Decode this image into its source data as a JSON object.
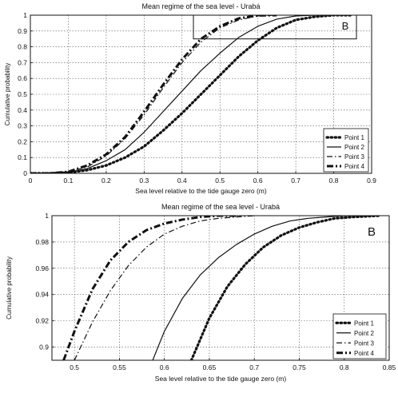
{
  "chart_data": [
    {
      "type": "line",
      "title": "Mean regime of the sea level - Urabá",
      "xlabel": "Sea level relative to the tide gauge zero (m)",
      "ylabel": "Cumulative probability",
      "xlim": [
        0,
        0.9
      ],
      "ylim": [
        0,
        1
      ],
      "xticks": [
        "0",
        "0.1",
        "0.2",
        "0.3",
        "0.4",
        "0.5",
        "0.6",
        "0.7",
        "0.8",
        "0.9"
      ],
      "yticks": [
        "0",
        "0.1",
        "0.2",
        "0.3",
        "0.4",
        "0.5",
        "0.6",
        "0.7",
        "0.8",
        "0.9",
        "1"
      ],
      "grid": true,
      "legend_position": "bottom-right",
      "annotation_box": {
        "label": "B",
        "x_range": [
          0.43,
          0.86
        ],
        "y_range": [
          0.85,
          1.0
        ]
      },
      "series": [
        {
          "name": "Point 1",
          "style": "dotted-thick",
          "x": [
            0,
            0.05,
            0.1,
            0.15,
            0.2,
            0.25,
            0.3,
            0.35,
            0.4,
            0.45,
            0.5,
            0.55,
            0.6,
            0.65,
            0.7,
            0.75,
            0.8,
            0.85
          ],
          "y": [
            0,
            0,
            0.005,
            0.02,
            0.05,
            0.1,
            0.17,
            0.27,
            0.38,
            0.5,
            0.62,
            0.74,
            0.84,
            0.92,
            0.97,
            0.99,
            1.0,
            1.0
          ]
        },
        {
          "name": "Point 2",
          "style": "solid",
          "x": [
            0,
            0.05,
            0.1,
            0.15,
            0.2,
            0.25,
            0.3,
            0.35,
            0.4,
            0.45,
            0.5,
            0.55,
            0.6,
            0.65,
            0.7,
            0.75,
            0.8
          ],
          "y": [
            0,
            0,
            0.005,
            0.03,
            0.08,
            0.15,
            0.26,
            0.39,
            0.52,
            0.65,
            0.76,
            0.86,
            0.93,
            0.975,
            0.995,
            1.0,
            1.0
          ]
        },
        {
          "name": "Point 3",
          "style": "dashdot-thin",
          "x": [
            0,
            0.05,
            0.1,
            0.15,
            0.2,
            0.25,
            0.3,
            0.35,
            0.4,
            0.45,
            0.5,
            0.55,
            0.6,
            0.65
          ],
          "y": [
            0,
            0,
            0.01,
            0.04,
            0.11,
            0.22,
            0.37,
            0.54,
            0.7,
            0.83,
            0.92,
            0.97,
            0.995,
            1.0
          ]
        },
        {
          "name": "Point 4",
          "style": "dashdot-thick",
          "x": [
            0,
            0.05,
            0.1,
            0.15,
            0.2,
            0.25,
            0.3,
            0.35,
            0.4,
            0.45,
            0.5,
            0.55,
            0.6,
            0.65
          ],
          "y": [
            0,
            0,
            0.01,
            0.05,
            0.12,
            0.23,
            0.39,
            0.56,
            0.72,
            0.85,
            0.93,
            0.98,
            0.998,
            1.0
          ]
        }
      ]
    },
    {
      "type": "line",
      "title": "Mean regime of the sea level - Urabá",
      "xlabel": "Sea level relative to the tide gauge zero (m)",
      "ylabel": "Cumulative probability",
      "xlim": [
        0.475,
        0.85
      ],
      "ylim": [
        0.89,
        1
      ],
      "xticks": [
        "0.5",
        "0.55",
        "0.6",
        "0.65",
        "0.7",
        "0.75",
        "0.8",
        "0.85"
      ],
      "yticks": [
        "0.9",
        "0.92",
        "0.94",
        "0.96",
        "0.98",
        "1"
      ],
      "grid": true,
      "legend_position": "bottom-right",
      "panel_label": "B",
      "series": [
        {
          "name": "Point 1",
          "style": "dotted-thick",
          "x": [
            0.63,
            0.65,
            0.67,
            0.69,
            0.71,
            0.73,
            0.75,
            0.77,
            0.79,
            0.81,
            0.84
          ],
          "y": [
            0.89,
            0.922,
            0.946,
            0.963,
            0.976,
            0.985,
            0.991,
            0.995,
            0.998,
            0.999,
            1.0
          ]
        },
        {
          "name": "Point 2",
          "style": "solid",
          "x": [
            0.587,
            0.6,
            0.62,
            0.64,
            0.66,
            0.68,
            0.7,
            0.72,
            0.74,
            0.76,
            0.78,
            0.8,
            0.82
          ],
          "y": [
            0.89,
            0.912,
            0.937,
            0.955,
            0.968,
            0.978,
            0.986,
            0.992,
            0.996,
            0.998,
            0.999,
            1.0,
            1.0
          ]
        },
        {
          "name": "Point 3",
          "style": "dashdot-thin",
          "x": [
            0.5,
            0.52,
            0.54,
            0.56,
            0.58,
            0.6,
            0.62,
            0.64,
            0.66,
            0.68,
            0.7
          ],
          "y": [
            0.89,
            0.919,
            0.943,
            0.962,
            0.976,
            0.986,
            0.992,
            0.996,
            0.998,
            0.999,
            1.0
          ]
        },
        {
          "name": "Point 4",
          "style": "dashdot-thick",
          "x": [
            0.488,
            0.5,
            0.52,
            0.54,
            0.56,
            0.58,
            0.6,
            0.62,
            0.64,
            0.66,
            0.68
          ],
          "y": [
            0.89,
            0.912,
            0.944,
            0.966,
            0.98,
            0.989,
            0.994,
            0.997,
            0.999,
            1.0,
            1.0
          ]
        }
      ]
    }
  ]
}
